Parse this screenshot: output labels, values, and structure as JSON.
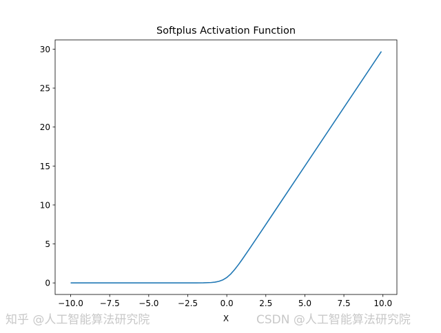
{
  "chart_data": {
    "type": "line",
    "title": "Softplus Activation Function",
    "xlabel": "X",
    "ylabel": "",
    "xlim": [
      -10.995,
      10.895
    ],
    "ylim": [
      -1.485,
      31.185
    ],
    "grid": false,
    "legend": "none",
    "x_ticks": [
      "−10.0",
      "−7.5",
      "−5.0",
      "−2.5",
      "0.0",
      "2.5",
      "5.0",
      "7.5",
      "10.0"
    ],
    "x_tick_values": [
      -10,
      -7.5,
      -5,
      -2.5,
      0,
      2.5,
      5,
      7.5,
      10
    ],
    "y_ticks": [
      "0",
      "5",
      "10",
      "15",
      "20",
      "25",
      "30"
    ],
    "y_tick_values": [
      0,
      5,
      10,
      15,
      20,
      25,
      30
    ],
    "series": [
      {
        "color": "#1f77b4",
        "x": [
          -10,
          -5,
          -2,
          -1.5,
          -1,
          -0.75,
          -0.5,
          -0.25,
          0,
          0.25,
          0.5,
          0.75,
          1,
          1.5,
          2,
          3,
          5,
          7.5,
          9.9
        ],
        "y": [
          0,
          0,
          0.0025,
          0.011,
          0.0486,
          0.1,
          0.201,
          0.387,
          0.693,
          1.137,
          1.701,
          2.35,
          3.049,
          4.511,
          6.002,
          9.0,
          15.0,
          22.5,
          29.7
        ]
      }
    ]
  },
  "watermark": "CSDN @人工智能算法研究院",
  "watermark2": "知乎 @人工智能算法研究院"
}
